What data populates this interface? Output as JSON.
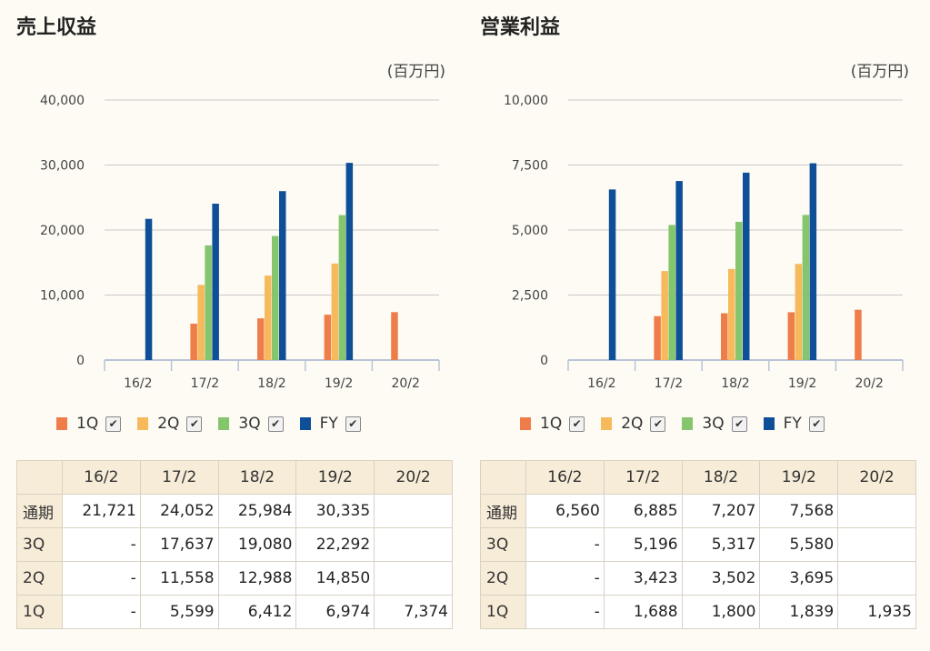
{
  "colors": {
    "1Q": "#ee7d4a",
    "2Q": "#f6b95c",
    "3Q": "#85c56c",
    "FY": "#0e4f98"
  },
  "legend_check": "✔",
  "chart_data": [
    {
      "type": "bar",
      "title": "売上収益",
      "unit": "(百万円)",
      "categories": [
        "16/2",
        "17/2",
        "18/2",
        "19/2",
        "20/2"
      ],
      "ylim": [
        0,
        40000
      ],
      "yticks": [
        "0",
        "10,000",
        "20,000",
        "30,000",
        "40,000"
      ],
      "ytick_values": [
        0,
        10000,
        20000,
        30000,
        40000
      ],
      "series": [
        {
          "name": "1Q",
          "values": [
            null,
            5599,
            6412,
            6974,
            7374
          ]
        },
        {
          "name": "2Q",
          "values": [
            null,
            11558,
            12988,
            14850,
            null
          ]
        },
        {
          "name": "3Q",
          "values": [
            null,
            17637,
            19080,
            22292,
            null
          ]
        },
        {
          "name": "FY",
          "values": [
            21721,
            24052,
            25984,
            30335,
            null
          ]
        }
      ],
      "table": {
        "header": [
          "",
          "16/2",
          "17/2",
          "18/2",
          "19/2",
          "20/2"
        ],
        "rows": [
          [
            "通期",
            "21,721",
            "24,052",
            "25,984",
            "30,335",
            ""
          ],
          [
            "3Q",
            "-",
            "17,637",
            "19,080",
            "22,292",
            ""
          ],
          [
            "2Q",
            "-",
            "11,558",
            "12,988",
            "14,850",
            ""
          ],
          [
            "1Q",
            "-",
            "5,599",
            "6,412",
            "6,974",
            "7,374"
          ]
        ]
      }
    },
    {
      "type": "bar",
      "title": "営業利益",
      "unit": "(百万円)",
      "categories": [
        "16/2",
        "17/2",
        "18/2",
        "19/2",
        "20/2"
      ],
      "ylim": [
        0,
        10000
      ],
      "yticks": [
        "0",
        "2,500",
        "5,000",
        "7,500",
        "10,000"
      ],
      "ytick_values": [
        0,
        2500,
        5000,
        7500,
        10000
      ],
      "series": [
        {
          "name": "1Q",
          "values": [
            null,
            1688,
            1800,
            1839,
            1935
          ]
        },
        {
          "name": "2Q",
          "values": [
            null,
            3423,
            3502,
            3695,
            null
          ]
        },
        {
          "name": "3Q",
          "values": [
            null,
            5196,
            5317,
            5580,
            null
          ]
        },
        {
          "name": "FY",
          "values": [
            6560,
            6885,
            7207,
            7568,
            null
          ]
        }
      ],
      "table": {
        "header": [
          "",
          "16/2",
          "17/2",
          "18/2",
          "19/2",
          "20/2"
        ],
        "rows": [
          [
            "通期",
            "6,560",
            "6,885",
            "7,207",
            "7,568",
            ""
          ],
          [
            "3Q",
            "-",
            "5,196",
            "5,317",
            "5,580",
            ""
          ],
          [
            "2Q",
            "-",
            "3,423",
            "3,502",
            "3,695",
            ""
          ],
          [
            "1Q",
            "-",
            "1,688",
            "1,800",
            "1,839",
            "1,935"
          ]
        ]
      }
    }
  ]
}
